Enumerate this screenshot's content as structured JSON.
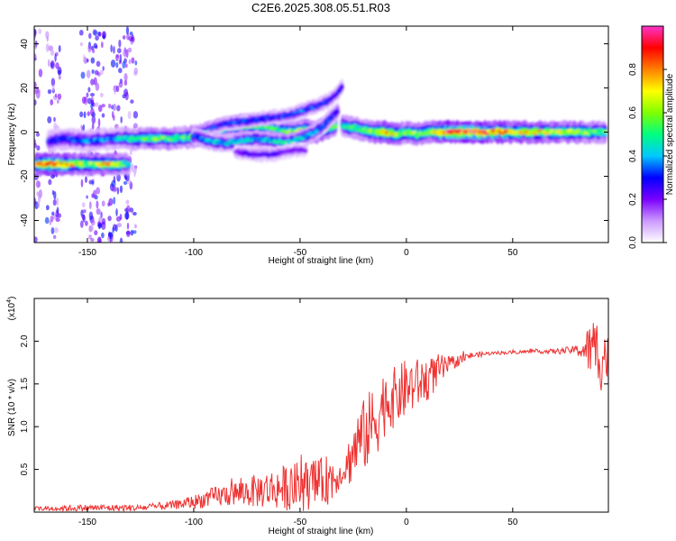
{
  "figure": {
    "title": "C2E6.2025.308.05.51.R03"
  },
  "chart_data": [
    {
      "type": "heatmap",
      "name": "spectrogram",
      "xlabel": "Height of straight line (km)",
      "ylabel": "Frequency (Hz)",
      "xlim": [
        -175,
        95
      ],
      "ylim": [
        -50,
        48
      ],
      "x_ticks": [
        -150,
        -100,
        -50,
        0,
        50
      ],
      "y_ticks": [
        -40,
        -20,
        0,
        20,
        40
      ],
      "grid": false,
      "colorbar": {
        "label": "Normalized spectral amplitude",
        "range": [
          0,
          1
        ],
        "ticks": [
          0.0,
          0.2,
          0.4,
          0.6,
          0.8
        ],
        "tick_labels": [
          "0.0",
          "0.2",
          "0.4",
          "0.6",
          "0.8"
        ],
        "colors": [
          "#ffffff",
          "#cc99ff",
          "#7a00ff",
          "#0000ff",
          "#00c8ff",
          "#00ff80",
          "#7fff00",
          "#ffff00",
          "#ff8000",
          "#ff0000",
          "#ff33cc"
        ]
      },
      "traces": [
        {
          "x": [
            -174,
            -168,
            -160,
            -150,
            -140,
            -130
          ],
          "y": [
            -14.5,
            -14.5,
            -14.5,
            -14.5,
            -14.5,
            -14.5
          ],
          "amp": [
            0.7,
            0.8,
            0.75,
            0.55,
            0.7,
            0.45
          ],
          "width": 3
        },
        {
          "x": [
            -168,
            -160,
            -150,
            -140,
            -130,
            -120,
            -110,
            -100,
            -92,
            -85,
            -78,
            -70,
            -62,
            -55,
            -48,
            -42,
            -37,
            -33
          ],
          "y": [
            -4,
            -3,
            -4,
            -3,
            -3,
            -3,
            -3,
            -2,
            0,
            2,
            3,
            3,
            1,
            0,
            1,
            0,
            2,
            3
          ],
          "amp": [
            0.3,
            0.3,
            0.35,
            0.35,
            0.45,
            0.55,
            0.55,
            0.5,
            0.55,
            0.6,
            0.6,
            0.55,
            0.5,
            0.55,
            0.6,
            0.65,
            0.6,
            0.5
          ],
          "width": 3
        },
        {
          "x": [
            -100,
            -92,
            -85,
            -78,
            -70,
            -62,
            -56,
            -50,
            -45,
            -40,
            -36,
            -32
          ],
          "y": [
            -2,
            -4,
            -5,
            -4,
            -3,
            -4,
            -5,
            -3,
            -1,
            2,
            6,
            10
          ],
          "amp": [
            0.35,
            0.4,
            0.4,
            0.45,
            0.4,
            0.45,
            0.5,
            0.45,
            0.4,
            0.35,
            0.3,
            0.25
          ],
          "width": 2.5
        },
        {
          "x": [
            -92,
            -84,
            -76,
            -68,
            -60,
            -54,
            -48,
            -42,
            -37,
            -33,
            -30
          ],
          "y": [
            2,
            4,
            5,
            6,
            7,
            8,
            10,
            12,
            14,
            17,
            21
          ],
          "amp": [
            0.3,
            0.3,
            0.35,
            0.3,
            0.3,
            0.3,
            0.35,
            0.3,
            0.3,
            0.25,
            0.25
          ],
          "width": 2
        },
        {
          "x": [
            -80,
            -72,
            -64,
            -58,
            -52,
            -47
          ],
          "y": [
            -9,
            -10,
            -10,
            -9,
            -8,
            -8
          ],
          "amp": [
            0.2,
            0.25,
            0.25,
            0.2,
            0.2,
            0.18
          ],
          "width": 2
        },
        {
          "x": [
            -30,
            -25,
            -20,
            -15,
            -10,
            -5,
            0,
            5,
            10,
            15,
            20,
            30,
            40,
            50,
            60,
            70,
            80,
            88,
            94
          ],
          "y": [
            3,
            2,
            1,
            0,
            0,
            -1,
            0,
            -1,
            0,
            0,
            0,
            0,
            0,
            0,
            0,
            0,
            0,
            0,
            0
          ],
          "amp": [
            0.45,
            0.5,
            0.55,
            0.6,
            0.75,
            0.65,
            0.55,
            0.6,
            0.55,
            0.75,
            0.85,
            0.9,
            0.8,
            0.75,
            0.7,
            0.65,
            0.6,
            0.55,
            0.5
          ],
          "width": 3
        }
      ],
      "scatter_columns": [
        -175,
        -166,
        -150,
        -145,
        -137,
        -130
      ]
    },
    {
      "type": "line",
      "name": "snr",
      "xlabel": "Height of straight line (km)",
      "ylabel": "SNR (10 * v/v)",
      "multiplier": "(x10",
      "multiplier_exp": "4",
      "xlim": [
        -175,
        95
      ],
      "ylim": [
        0,
        2.5
      ],
      "x_ticks": [
        -150,
        -100,
        -50,
        0,
        50
      ],
      "y_ticks": [
        0.5,
        1.0,
        1.5,
        2.0
      ],
      "y_tick_labels": [
        "0.5",
        "1.0",
        "1.5",
        "2.0"
      ],
      "grid": false,
      "color": "#ee3333",
      "envelope": {
        "x": [
          -175,
          -150,
          -125,
          -110,
          -100,
          -90,
          -80,
          -70,
          -60,
          -50,
          -40,
          -35,
          -30,
          -26,
          -22,
          -18,
          -14,
          -10,
          -5,
          0,
          5,
          10,
          15,
          20,
          25,
          30,
          40,
          50,
          60,
          70,
          80,
          85,
          88,
          92,
          95
        ],
        "base": [
          0.04,
          0.05,
          0.05,
          0.08,
          0.12,
          0.18,
          0.22,
          0.25,
          0.28,
          0.3,
          0.35,
          0.4,
          0.45,
          0.65,
          0.85,
          0.95,
          1.1,
          1.3,
          1.35,
          1.45,
          1.5,
          1.55,
          1.65,
          1.72,
          1.78,
          1.83,
          1.86,
          1.87,
          1.88,
          1.88,
          1.9,
          1.9,
          1.9,
          1.85,
          1.8
        ],
        "amp": [
          0.03,
          0.04,
          0.04,
          0.05,
          0.08,
          0.12,
          0.15,
          0.2,
          0.25,
          0.3,
          0.28,
          0.3,
          0.1,
          0.35,
          0.4,
          0.45,
          0.45,
          0.4,
          0.35,
          0.35,
          0.3,
          0.25,
          0.2,
          0.1,
          0.06,
          0.04,
          0.02,
          0.02,
          0.02,
          0.03,
          0.05,
          0.25,
          0.4,
          0.45,
          0.4
        ]
      },
      "samples": 800
    }
  ]
}
